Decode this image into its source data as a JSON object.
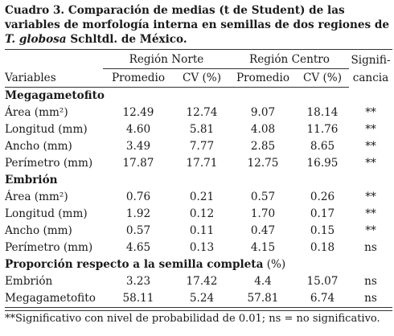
{
  "caption": {
    "prefix": "Cuadro 3. Comparación de medias (t de Student) de las variables de morfología interna en semillas de dos regiones de ",
    "species": "T. globosa",
    "suffix": " Schltdl. de México."
  },
  "headers": {
    "region_norte": "Región Norte",
    "region_centro": "Región Centro",
    "significancia_1": "Signifi-",
    "significancia_2": "cancia",
    "variables": "Variables",
    "promedio": "Promedio",
    "cv": "CV (%)"
  },
  "sections": [
    {
      "title": "Megagametofito",
      "rows": [
        {
          "variable": "Área (mm²)",
          "norte_prom": "12.49",
          "norte_cv": "12.74",
          "centro_prom": "9.07",
          "centro_cv": "18.14",
          "sig": "**"
        },
        {
          "variable": "Longitud (mm)",
          "norte_prom": "4.60",
          "norte_cv": "5.81",
          "centro_prom": "4.08",
          "centro_cv": "11.76",
          "sig": "**"
        },
        {
          "variable": "Ancho (mm)",
          "norte_prom": "3.49",
          "norte_cv": "7.77",
          "centro_prom": "2.85",
          "centro_cv": "8.65",
          "sig": "**"
        },
        {
          "variable": "Perímetro (mm)",
          "norte_prom": "17.87",
          "norte_cv": "17.71",
          "centro_prom": "12.75",
          "centro_cv": "16.95",
          "sig": "**"
        }
      ]
    },
    {
      "title": "Embrión",
      "rows": [
        {
          "variable": "Área (mm²)",
          "norte_prom": "0.76",
          "norte_cv": "0.21",
          "centro_prom": "0.57",
          "centro_cv": "0.26",
          "sig": "**"
        },
        {
          "variable": "Longitud (mm)",
          "norte_prom": "1.92",
          "norte_cv": "0.12",
          "centro_prom": "1.70",
          "centro_cv": "0.17",
          "sig": "**"
        },
        {
          "variable": "Ancho (mm)",
          "norte_prom": "0.57",
          "norte_cv": "0.11",
          "centro_prom": "0.47",
          "centro_cv": "0.15",
          "sig": "**"
        },
        {
          "variable": "Perímetro (mm)",
          "norte_prom": "4.65",
          "norte_cv": "0.13",
          "centro_prom": "4.15",
          "centro_cv": "0.18",
          "sig": "ns"
        }
      ]
    },
    {
      "title": "Proporción respecto a la semilla completa",
      "title_suffix": " (%)",
      "rows": [
        {
          "variable": "Embrión",
          "norte_prom": "3.23",
          "norte_cv": "17.42",
          "centro_prom": "4.4",
          "centro_cv": "15.07",
          "sig": "ns"
        },
        {
          "variable": "Megagametofito",
          "norte_prom": "58.11",
          "norte_cv": "5.24",
          "centro_prom": "57.81",
          "centro_cv": "6.74",
          "sig": "ns"
        }
      ]
    }
  ],
  "footnote": "**Significativo con nivel de probabilidad de 0.01; ns = no significativo."
}
